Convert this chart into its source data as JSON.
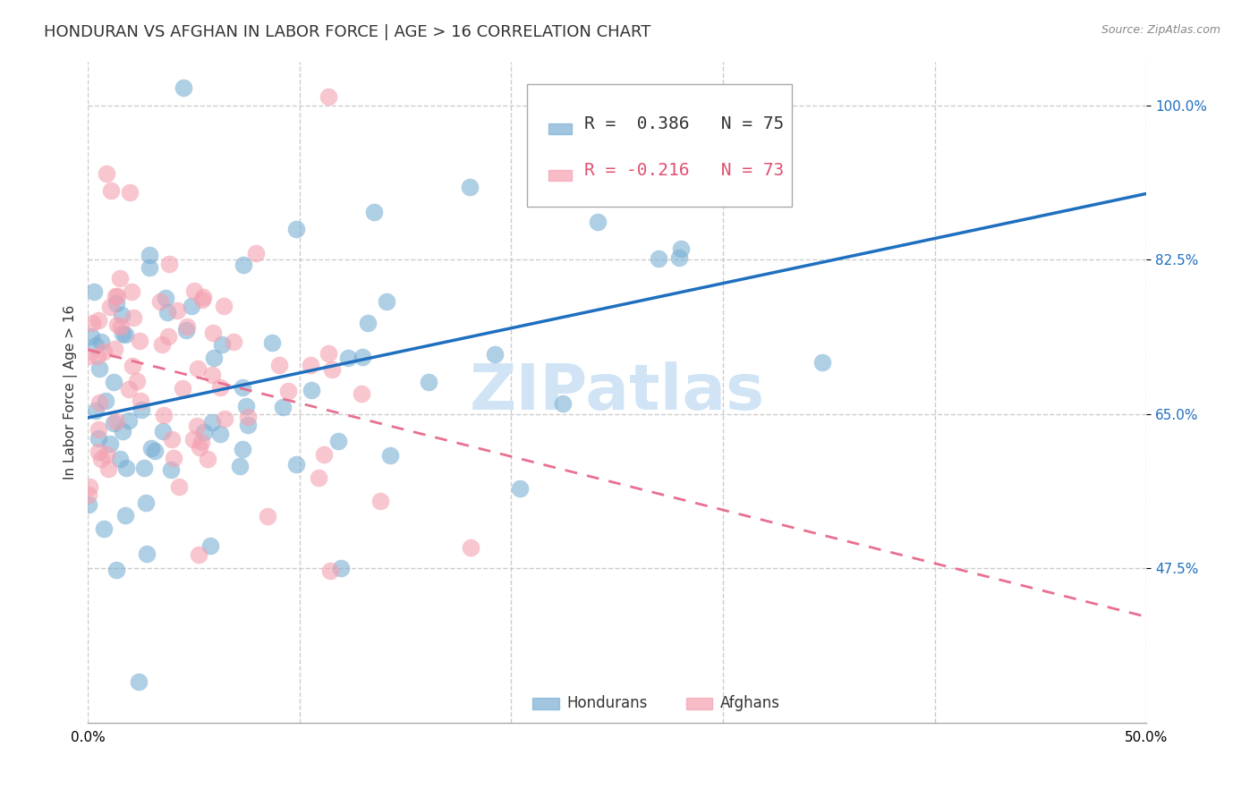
{
  "title": "HONDURAN VS AFGHAN IN LABOR FORCE | AGE > 16 CORRELATION CHART",
  "source": "Source: ZipAtlas.com",
  "ylabel": "In Labor Force | Age > 16",
  "xlim": [
    0.0,
    0.5
  ],
  "ylim": [
    0.3,
    1.05
  ],
  "xticks": [
    0.0,
    0.1,
    0.2,
    0.3,
    0.4,
    0.5
  ],
  "xticklabels": [
    "0.0%",
    "",
    "",
    "",
    "",
    "50.0%"
  ],
  "ytick_positions": [
    0.475,
    0.65,
    0.825,
    1.0
  ],
  "yticklabels": [
    "47.5%",
    "65.0%",
    "82.5%",
    "100.0%"
  ],
  "honduran_R": 0.386,
  "honduran_N": 75,
  "afghan_R": -0.216,
  "afghan_N": 73,
  "honduran_color": "#7bafd4",
  "afghan_color": "#f4a0b0",
  "honduran_line_color": "#1f6fbf",
  "afghan_line_color": "#e87090",
  "watermark": "ZIPatlas",
  "watermark_color": "#d0e4f5",
  "legend_entries": [
    "Hondurans",
    "Afghans"
  ],
  "background_color": "#ffffff",
  "grid_color": "#cccccc",
  "title_fontsize": 13,
  "axis_label_fontsize": 11,
  "tick_fontsize": 11,
  "legend_fontsize": 14
}
